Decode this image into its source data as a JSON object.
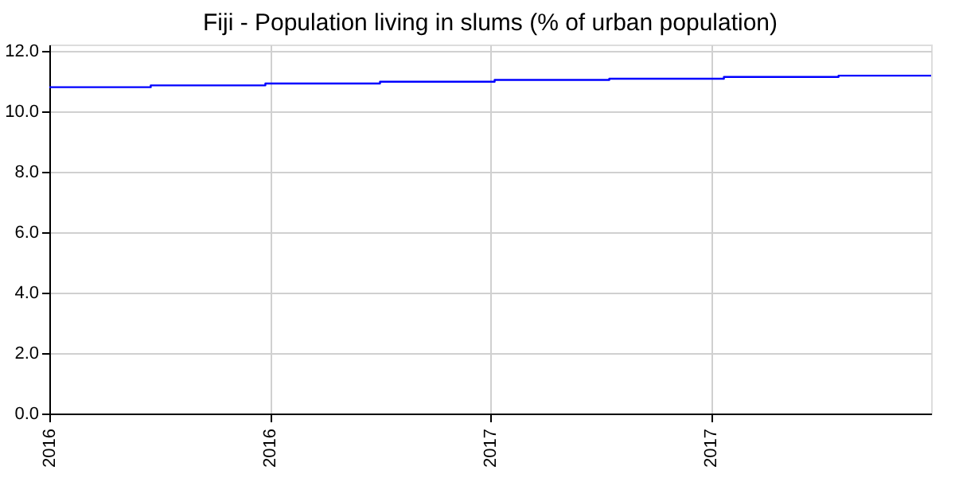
{
  "chart_data": {
    "type": "step",
    "title": "Fiji - Population living in slums (% of urban population)",
    "x": [
      2016.0,
      2016.23,
      2016.49,
      2016.75,
      2017.01,
      2017.27,
      2017.53,
      2017.79,
      2018.0
    ],
    "series": [
      {
        "color": "#0000ff",
        "values": [
          10.79,
          10.85,
          10.91,
          10.97,
          11.03,
          11.07,
          11.13,
          11.17,
          11.17
        ]
      }
    ],
    "xlim": [
      2016.0,
      2018.0
    ],
    "xticks": [
      {
        "value": 2016.0,
        "label": "2016"
      },
      {
        "value": 2016.5,
        "label": "2016"
      },
      {
        "value": 2017.0,
        "label": "2017"
      },
      {
        "value": 2017.5,
        "label": "2017"
      }
    ],
    "ylim": [
      0,
      12.2
    ],
    "yticks": [
      {
        "value": 0,
        "label": "0.0"
      },
      {
        "value": 2,
        "label": "2.0"
      },
      {
        "value": 4,
        "label": "4.0"
      },
      {
        "value": 6,
        "label": "6.0"
      },
      {
        "value": 8,
        "label": "8.0"
      },
      {
        "value": 10,
        "label": "10.0"
      },
      {
        "value": 12,
        "label": "12.0"
      }
    ],
    "grid": true,
    "marker": "none",
    "line_style": "solid"
  }
}
